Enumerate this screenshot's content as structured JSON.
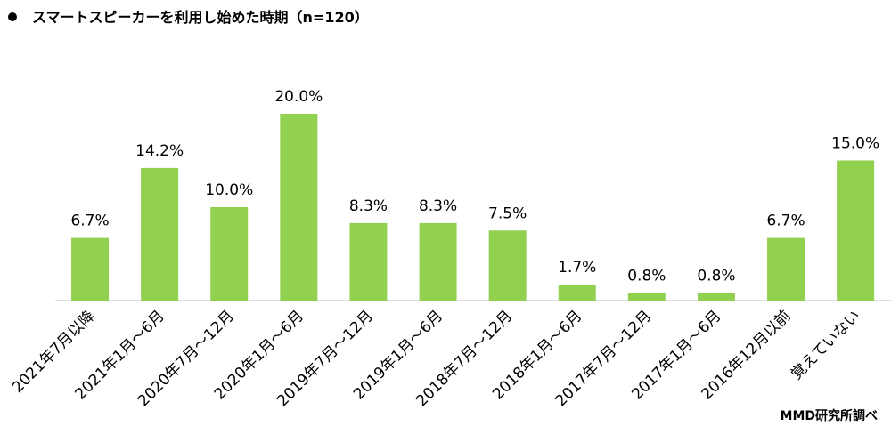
{
  "chart_data": {
    "type": "bar",
    "title": "スマートスピーカーを利用し始めた時期（n=120）",
    "source": "MMD研究所調べ",
    "categories": [
      "2021年7月以降",
      "2021年1月～6月",
      "2020年7月～12月",
      "2020年1月～6月",
      "2019年7月～12月",
      "2019年1月～6月",
      "2018年7月～12月",
      "2018年1月～6月",
      "2017年7月～12月",
      "2017年1月～6月",
      "2016年12月以前",
      "覚えていない"
    ],
    "values": [
      6.7,
      14.2,
      10.0,
      20.0,
      8.3,
      8.3,
      7.5,
      1.7,
      0.8,
      0.8,
      6.7,
      15.0
    ],
    "value_labels": [
      "6.7%",
      "14.2%",
      "10.0%",
      "20.0%",
      "8.3%",
      "8.3%",
      "7.5%",
      "1.7%",
      "0.8%",
      "0.8%",
      "6.7%",
      "15.0%"
    ],
    "color": "#92d050"
  }
}
